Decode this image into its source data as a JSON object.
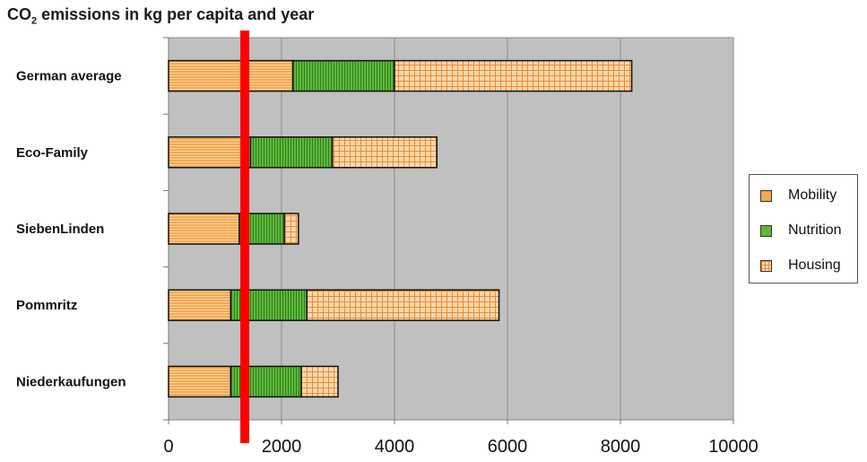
{
  "title_main": "CO",
  "title_sub": "2",
  "title_rest": " emissions in kg per capita and year",
  "colors": {
    "plot_bg": "#c0c0c0",
    "mobility": "#f7a84f",
    "nutrition": "#5fb83a",
    "housing": "#fbc896",
    "marker": "#ff0000",
    "grid": "#8a8a8a"
  },
  "chart_data": {
    "type": "bar",
    "orientation": "horizontal",
    "stacked": true,
    "title": "CO2 emissions in kg per capita and year",
    "categories": [
      "German average",
      "Eco-Family",
      "SiebenLinden",
      "Pommritz",
      "Niederkaufungen"
    ],
    "series": [
      {
        "name": "Mobility",
        "values": [
          2200,
          1450,
          1250,
          1100,
          1100
        ],
        "pattern": "horizontal-lines"
      },
      {
        "name": "Nutrition",
        "values": [
          1800,
          1450,
          800,
          1350,
          1250
        ],
        "pattern": "vertical-lines"
      },
      {
        "name": "Housing",
        "values": [
          4200,
          1850,
          250,
          3400,
          650
        ],
        "pattern": "grid"
      }
    ],
    "xlim": [
      0,
      10000
    ],
    "xticks": [
      "0",
      "2000",
      "4000",
      "6000",
      "8000",
      "10000"
    ],
    "xtick_values": [
      0,
      2000,
      4000,
      6000,
      8000,
      10000
    ],
    "reference_line": {
      "x": 1350,
      "color": "#ff0000"
    },
    "grid": "vertical",
    "legend": "right"
  }
}
